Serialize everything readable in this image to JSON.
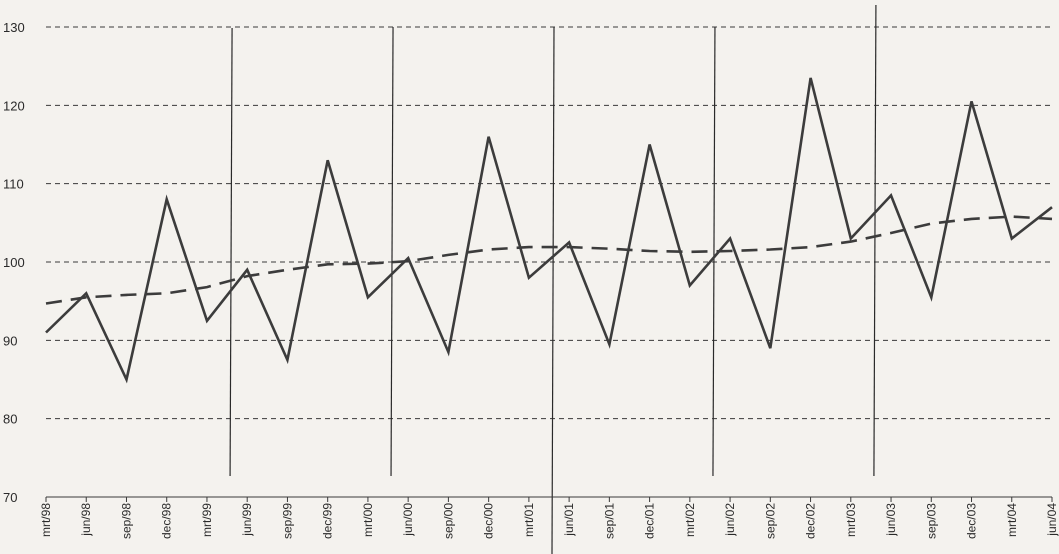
{
  "chart_data": {
    "type": "line",
    "title": "",
    "xlabel": "",
    "ylabel": "",
    "ylim": [
      70,
      130
    ],
    "yticks": [
      70,
      80,
      90,
      100,
      110,
      120,
      130
    ],
    "grid": true,
    "grid_style": "dashed horizontal",
    "categories": [
      "mrt/98",
      "jun/98",
      "sep/98",
      "dec/98",
      "mrt/99",
      "jun/99",
      "sep/99",
      "dec/99",
      "mrt/00",
      "jun/00",
      "sep/00",
      "dec/00",
      "mrt/01",
      "jun/01",
      "sep/01",
      "dec/01",
      "mrt/02",
      "jun/02",
      "sep/02",
      "dec/02",
      "mrt/03",
      "jun/03",
      "sep/03",
      "dec/03",
      "mrt/04",
      "jun/04"
    ],
    "series": [
      {
        "style": "solid",
        "values": [
          91.0,
          96.0,
          85.0,
          108.0,
          92.5,
          99.0,
          87.5,
          113.0,
          95.5,
          100.5,
          88.5,
          116.0,
          98.0,
          102.5,
          89.5,
          115.0,
          97.0,
          103.0,
          89.0,
          123.5,
          103.0,
          108.5,
          95.5,
          120.5,
          103.0,
          107.0
        ]
      },
      {
        "style": "dashed",
        "values": [
          94.7,
          95.5,
          95.8,
          96.0,
          96.8,
          98.2,
          99.0,
          99.7,
          99.8,
          100.1,
          100.9,
          101.6,
          101.9,
          101.9,
          101.7,
          101.4,
          101.3,
          101.4,
          101.6,
          101.9,
          102.6,
          103.7,
          104.9,
          105.5,
          105.8,
          105.5
        ]
      }
    ],
    "vertical_markers_after": [
      "mrt/99",
      "mrt/00",
      "mrt/01",
      "mrt/02",
      "mrt/03"
    ]
  }
}
